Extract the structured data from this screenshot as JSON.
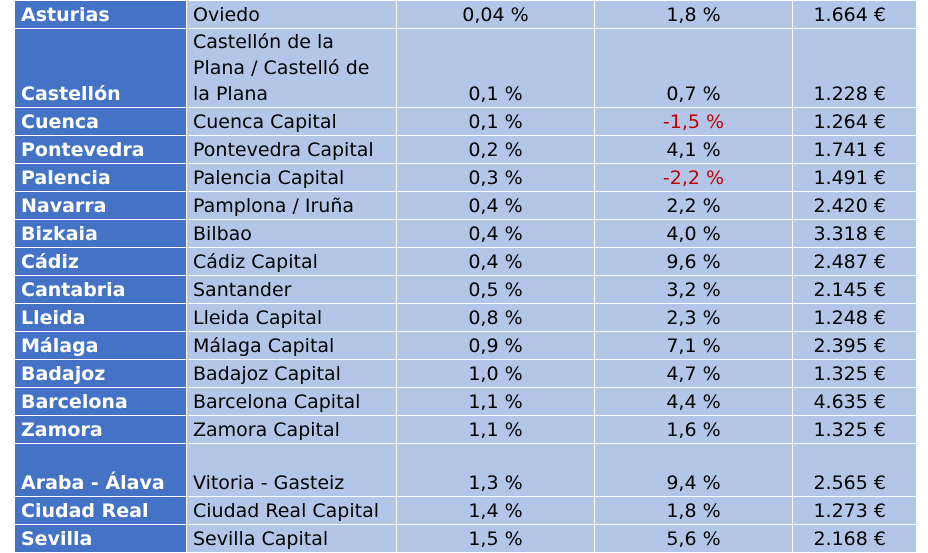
{
  "rows": [
    {
      "province": "Asturias",
      "city": "Oviedo",
      "change_monthly": "0,04 %",
      "change_yearly": "1,8 %",
      "price": "1.664 €",
      "yearly_negative": false
    },
    {
      "province": "Castellón",
      "city": "Castellón de la Plana / Castelló de la Plana",
      "change_monthly": "0,1 %",
      "change_yearly": "0,7 %",
      "price": "1.228 €",
      "yearly_negative": false
    },
    {
      "province": "Cuenca",
      "city": "Cuenca Capital",
      "change_monthly": "0,1 %",
      "change_yearly": "-1,5 %",
      "price": "1.264 €",
      "yearly_negative": true
    },
    {
      "province": "Pontevedra",
      "city": "Pontevedra Capital",
      "change_monthly": "0,2 %",
      "change_yearly": "4,1 %",
      "price": "1.741 €",
      "yearly_negative": false
    },
    {
      "province": "Palencia",
      "city": "Palencia Capital",
      "change_monthly": "0,3 %",
      "change_yearly": "-2,2 %",
      "price": "1.491 €",
      "yearly_negative": true
    },
    {
      "province": "Navarra",
      "city": "Pamplona / Iruña",
      "change_monthly": "0,4 %",
      "change_yearly": "2,2 %",
      "price": "2.420 €",
      "yearly_negative": false
    },
    {
      "province": "Bizkaia",
      "city": "Bilbao",
      "change_monthly": "0,4 %",
      "change_yearly": "4,0 %",
      "price": "3.318 €",
      "yearly_negative": false
    },
    {
      "province": "Cádiz",
      "city": "Cádiz Capital",
      "change_monthly": "0,4 %",
      "change_yearly": "9,6 %",
      "price": "2.487 €",
      "yearly_negative": false
    },
    {
      "province": "Cantabria",
      "city": "Santander",
      "change_monthly": "0,5 %",
      "change_yearly": "3,2 %",
      "price": "2.145 €",
      "yearly_negative": false
    },
    {
      "province": "Lleida",
      "city": "Lleida Capital",
      "change_monthly": "0,8 %",
      "change_yearly": "2,3 %",
      "price": "1.248 €",
      "yearly_negative": false
    },
    {
      "province": "Málaga",
      "city": "Málaga Capital",
      "change_monthly": "0,9 %",
      "change_yearly": "7,1 %",
      "price": "2.395 €",
      "yearly_negative": false
    },
    {
      "province": "Badajoz",
      "city": "Badajoz Capital",
      "change_monthly": "1,0 %",
      "change_yearly": "4,7 %",
      "price": "1.325 €",
      "yearly_negative": false
    },
    {
      "province": "Barcelona",
      "city": "Barcelona Capital",
      "change_monthly": "1,1 %",
      "change_yearly": "4,4 %",
      "price": "4.635 €",
      "yearly_negative": false
    },
    {
      "province": "Zamora",
      "city": "Zamora Capital",
      "change_monthly": "1,1 %",
      "change_yearly": "1,6 %",
      "price": "1.325 €",
      "yearly_negative": false
    },
    {
      "province": "Araba - Álava",
      "city": "Vitoria - Gasteiz",
      "change_monthly": "1,3 %",
      "change_yearly": "9,4 %",
      "price": "2.565 €",
      "yearly_negative": false
    },
    {
      "province": "Ciudad Real",
      "city": "Ciudad Real Capital",
      "change_monthly": "1,4 %",
      "change_yearly": "1,8 %",
      "price": "1.273 €",
      "yearly_negative": false
    },
    {
      "province": "Sevilla",
      "city": "Sevilla Capital",
      "change_monthly": "1,5 %",
      "change_yearly": "5,6 %",
      "price": "2.168 €",
      "yearly_negative": false
    }
  ],
  "colors": {
    "province_bg": "#4472c4",
    "cell_bg": "#b4c6e7",
    "negative_text": "#c00000"
  }
}
